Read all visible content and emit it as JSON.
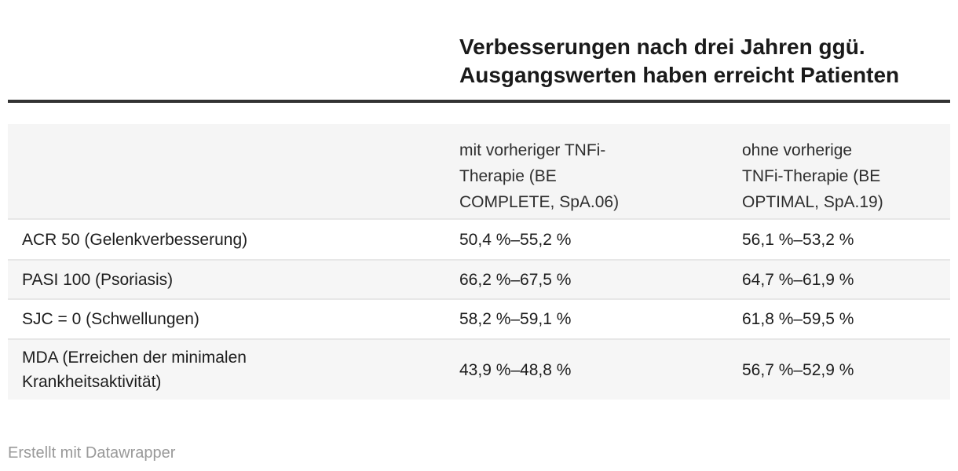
{
  "chart_data": {
    "type": "table",
    "title": "Verbesserungen nach drei Jahren ggü. Ausgangswerten haben erreicht Patienten",
    "columns": [
      "",
      "mit vorheriger TNFi-Therapie (BE COMPLETE, SpA.06)",
      "ohne vorherige TNFi-Therapie (BE OPTIMAL, SpA.19)"
    ],
    "rows": [
      [
        "ACR 50 (Gelenkverbesserung)",
        "50,4 %–55,2 %",
        "56,1 %–53,2 %"
      ],
      [
        "PASI 100 (Psoriasis)",
        "66,2 %–67,5 %",
        "64,7 %–61,9 %"
      ],
      [
        "SJC = 0 (Schwellungen)",
        "58,2 %–59,1 %",
        "61,8 %–59,5 %"
      ],
      [
        "MDA (Erreichen der minimalen Krankheitsaktivität)",
        "43,9 %–48,8 %",
        "56,7 %–52,9 %"
      ]
    ],
    "layout_hints": {
      "zebra_striping": true,
      "header_background": "#f5f5f5",
      "title_position": "top-right-of-columns"
    }
  },
  "display": {
    "title": "Verbesserungen nach drei Jahren ggü.\nAusgangswerten haben erreicht Patienten",
    "header": {
      "col_label": "",
      "col_v1": "mit vorheriger TNFi-\nTherapie (BE\nCOMPLETE, SpA.06)",
      "col_v2": "ohne vorherige\nTNFi-Therapie (BE\nOPTIMAL, SpA.19)"
    },
    "rows": [
      {
        "label": "ACR 50 (Gelenkverbesserung)",
        "v1": "50,4 %–55,2 %",
        "v2": "56,1 %–53,2 %"
      },
      {
        "label": "PASI 100 (Psoriasis)",
        "v1": "66,2 %–67,5 %",
        "v2": "64,7 %–61,9 %"
      },
      {
        "label": "SJC = 0 (Schwellungen)",
        "v1": "58,2 %–59,1 %",
        "v2": "61,8 %–59,5 %"
      },
      {
        "label": "MDA (Erreichen der minimalen\nKrankheitsaktivität)",
        "v1": "43,9 %–48,8 %",
        "v2": "56,7 %–52,9 %"
      }
    ],
    "footer_credit": "Erstellt mit Datawrapper"
  },
  "colors": {
    "title_text": "#1a1a1a",
    "body_text": "#1d1d1d",
    "header_text": "#2e2e2e",
    "top_rule": "#333333",
    "header_background": "#f5f5f5",
    "stripe_background": "#f6f6f6",
    "row_divider": "#e7e7e7",
    "footer_text": "#999999",
    "page_background": "#ffffff"
  }
}
